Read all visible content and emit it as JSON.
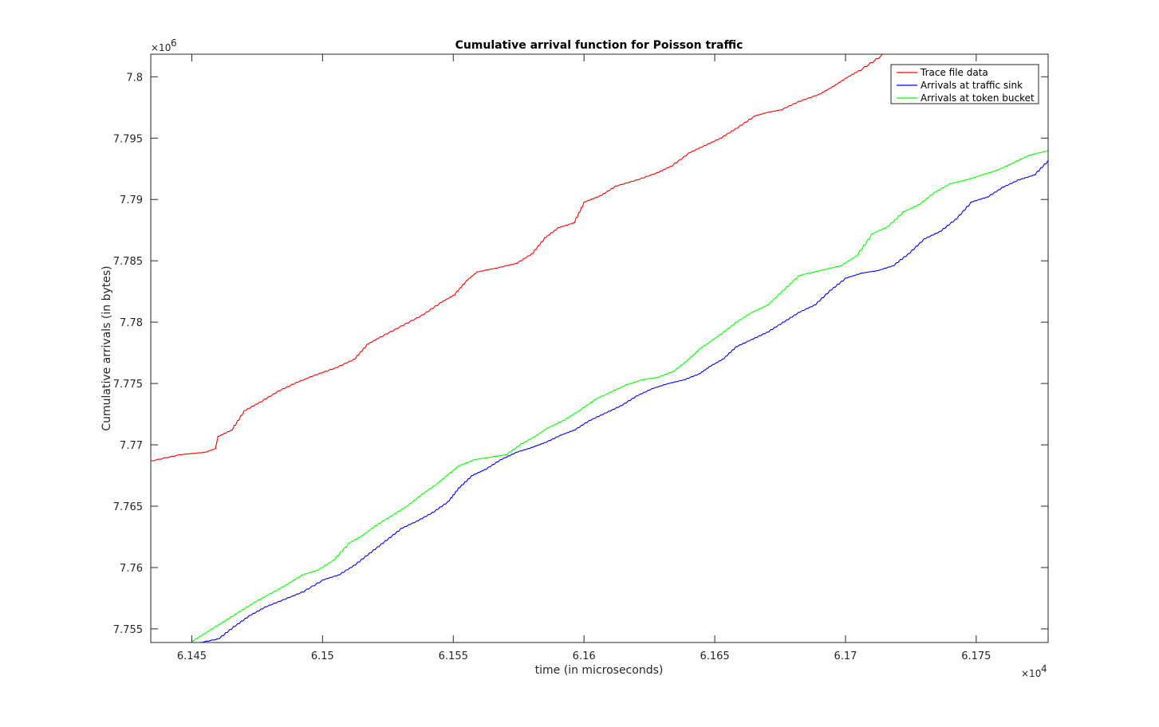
{
  "chart_data": {
    "type": "line",
    "title": "Cumulative arrival function for Poisson traffic",
    "xlabel": "time (in microseconds)",
    "ylabel": "Cumulative arrivals (in bytes)",
    "x_exponent_label": "×10",
    "x_exponent_power": "4",
    "y_exponent_label": "×10",
    "y_exponent_power": "6",
    "xlim": [
      6.14343,
      6.17775
    ],
    "ylim": [
      7.75389,
      7.80184
    ],
    "x_ticks": [
      6.145,
      6.15,
      6.155,
      6.16,
      6.165,
      6.17,
      6.175
    ],
    "x_tick_labels": [
      "6.145",
      "6.15",
      "6.155",
      "6.16",
      "6.165",
      "6.17",
      "6.175"
    ],
    "y_ticks": [
      7.755,
      7.76,
      7.765,
      7.77,
      7.775,
      7.78,
      7.785,
      7.79,
      7.795,
      7.8
    ],
    "y_tick_labels": [
      "7.755",
      "7.76",
      "7.765",
      "7.77",
      "7.775",
      "7.78",
      "7.785",
      "7.79",
      "7.795",
      "7.8"
    ],
    "grid": false,
    "legend_position": "top-right",
    "series": [
      {
        "name": "Trace file data",
        "color": "#ff0000",
        "x": [
          6.14343,
          6.1445,
          6.1455,
          6.1459,
          6.146,
          6.1465,
          6.147,
          6.1476,
          6.1483,
          6.149,
          6.1497,
          6.1505,
          6.1512,
          6.1517,
          6.1522,
          6.153,
          6.1538,
          6.1545,
          6.155,
          6.1555,
          6.1559,
          6.1566,
          6.1574,
          6.158,
          6.1585,
          6.159,
          6.1596,
          6.16,
          6.1606,
          6.1612,
          6.162,
          6.1628,
          6.1633,
          6.164,
          6.1646,
          6.1652,
          6.1658,
          6.1665,
          6.167,
          6.1675,
          6.1682,
          6.169,
          6.1695,
          6.17,
          6.1705,
          6.1714
        ],
        "y": [
          7.7687,
          7.7692,
          7.7694,
          7.7697,
          7.7707,
          7.7712,
          7.7728,
          7.7735,
          7.7744,
          7.7751,
          7.7757,
          7.7763,
          7.777,
          7.7782,
          7.7788,
          7.7797,
          7.7806,
          7.7816,
          7.7822,
          7.7834,
          7.7841,
          7.7844,
          7.7848,
          7.7856,
          7.7869,
          7.7877,
          7.7881,
          7.7898,
          7.7903,
          7.7911,
          7.7916,
          7.7922,
          7.7927,
          7.7938,
          7.7944,
          7.795,
          7.7958,
          7.7968,
          7.7971,
          7.7973,
          7.798,
          7.7986,
          7.7992,
          7.7999,
          7.8005,
          7.8018
        ]
      },
      {
        "name": "Arrivals at traffic sink",
        "color": "#0000ff",
        "x": [
          6.1451,
          6.146,
          6.1466,
          6.1472,
          6.1478,
          6.1485,
          6.1492,
          6.15,
          6.1506,
          6.1512,
          6.1518,
          6.1524,
          6.153,
          6.1536,
          6.1542,
          6.1548,
          6.1552,
          6.1557,
          6.1562,
          6.1568,
          6.1574,
          6.158,
          6.1585,
          6.1591,
          6.1596,
          6.1602,
          6.1608,
          6.1614,
          6.162,
          6.1626,
          6.1632,
          6.1638,
          6.1644,
          6.1648,
          6.1653,
          6.1658,
          6.1664,
          6.167,
          6.1676,
          6.1682,
          6.1688,
          6.1694,
          6.17,
          6.1706,
          6.1712,
          6.1718,
          6.1724,
          6.173,
          6.1736,
          6.1742,
          6.1748,
          6.1754,
          6.176,
          6.1766,
          6.1772,
          6.17775
        ],
        "y": [
          7.7538,
          7.7542,
          7.7552,
          7.7561,
          7.7568,
          7.7574,
          7.758,
          7.759,
          7.7594,
          7.7602,
          7.7612,
          7.7622,
          7.7632,
          7.7638,
          7.7645,
          7.7654,
          7.7665,
          7.7675,
          7.768,
          7.7688,
          7.7694,
          7.7698,
          7.7702,
          7.7708,
          7.7712,
          7.772,
          7.7726,
          7.7732,
          7.774,
          7.7746,
          7.775,
          7.7753,
          7.7758,
          7.7764,
          7.777,
          7.778,
          7.7786,
          7.7792,
          7.78,
          7.7808,
          7.7814,
          7.7826,
          7.7836,
          7.784,
          7.7842,
          7.7846,
          7.7856,
          7.7868,
          7.7874,
          7.7884,
          7.7898,
          7.7902,
          7.791,
          7.7916,
          7.792,
          7.7932
        ]
      },
      {
        "name": "Arrivals at token bucket",
        "color": "#00ff00",
        "x": [
          6.145,
          6.1456,
          6.1462,
          6.1468,
          6.1474,
          6.148,
          6.1486,
          6.1492,
          6.1498,
          6.1504,
          6.151,
          6.1515,
          6.152,
          6.1526,
          6.1532,
          6.1538,
          6.1544,
          6.1548,
          6.1552,
          6.1558,
          6.1564,
          6.157,
          6.1576,
          6.1582,
          6.1586,
          6.1592,
          6.1598,
          6.1604,
          6.161,
          6.1616,
          6.1622,
          6.1628,
          6.1634,
          6.164,
          6.1644,
          6.1648,
          6.1652,
          6.1658,
          6.1664,
          6.167,
          6.1676,
          6.1682,
          6.1686,
          6.1692,
          6.1698,
          6.1704,
          6.171,
          6.1716,
          6.1722,
          6.1728,
          6.1734,
          6.174,
          6.1746,
          6.1752,
          6.1758,
          6.1764,
          6.177,
          6.17775
        ],
        "y": [
          7.754,
          7.7548,
          7.7556,
          7.7564,
          7.7572,
          7.7579,
          7.7586,
          7.7594,
          7.7598,
          7.7606,
          7.762,
          7.7626,
          7.7634,
          7.7642,
          7.765,
          7.766,
          7.7669,
          7.7676,
          7.7683,
          7.7688,
          7.769,
          7.7692,
          7.7701,
          7.7708,
          7.7714,
          7.772,
          7.7728,
          7.7737,
          7.7743,
          7.7749,
          7.7753,
          7.7755,
          7.776,
          7.777,
          7.7778,
          7.7784,
          7.779,
          7.78,
          7.7808,
          7.7814,
          7.7826,
          7.7838,
          7.784,
          7.7843,
          7.7846,
          7.7854,
          7.7872,
          7.7878,
          7.789,
          7.7896,
          7.7906,
          7.7913,
          7.7916,
          7.792,
          7.7924,
          7.793,
          7.7936,
          7.794
        ]
      }
    ]
  }
}
